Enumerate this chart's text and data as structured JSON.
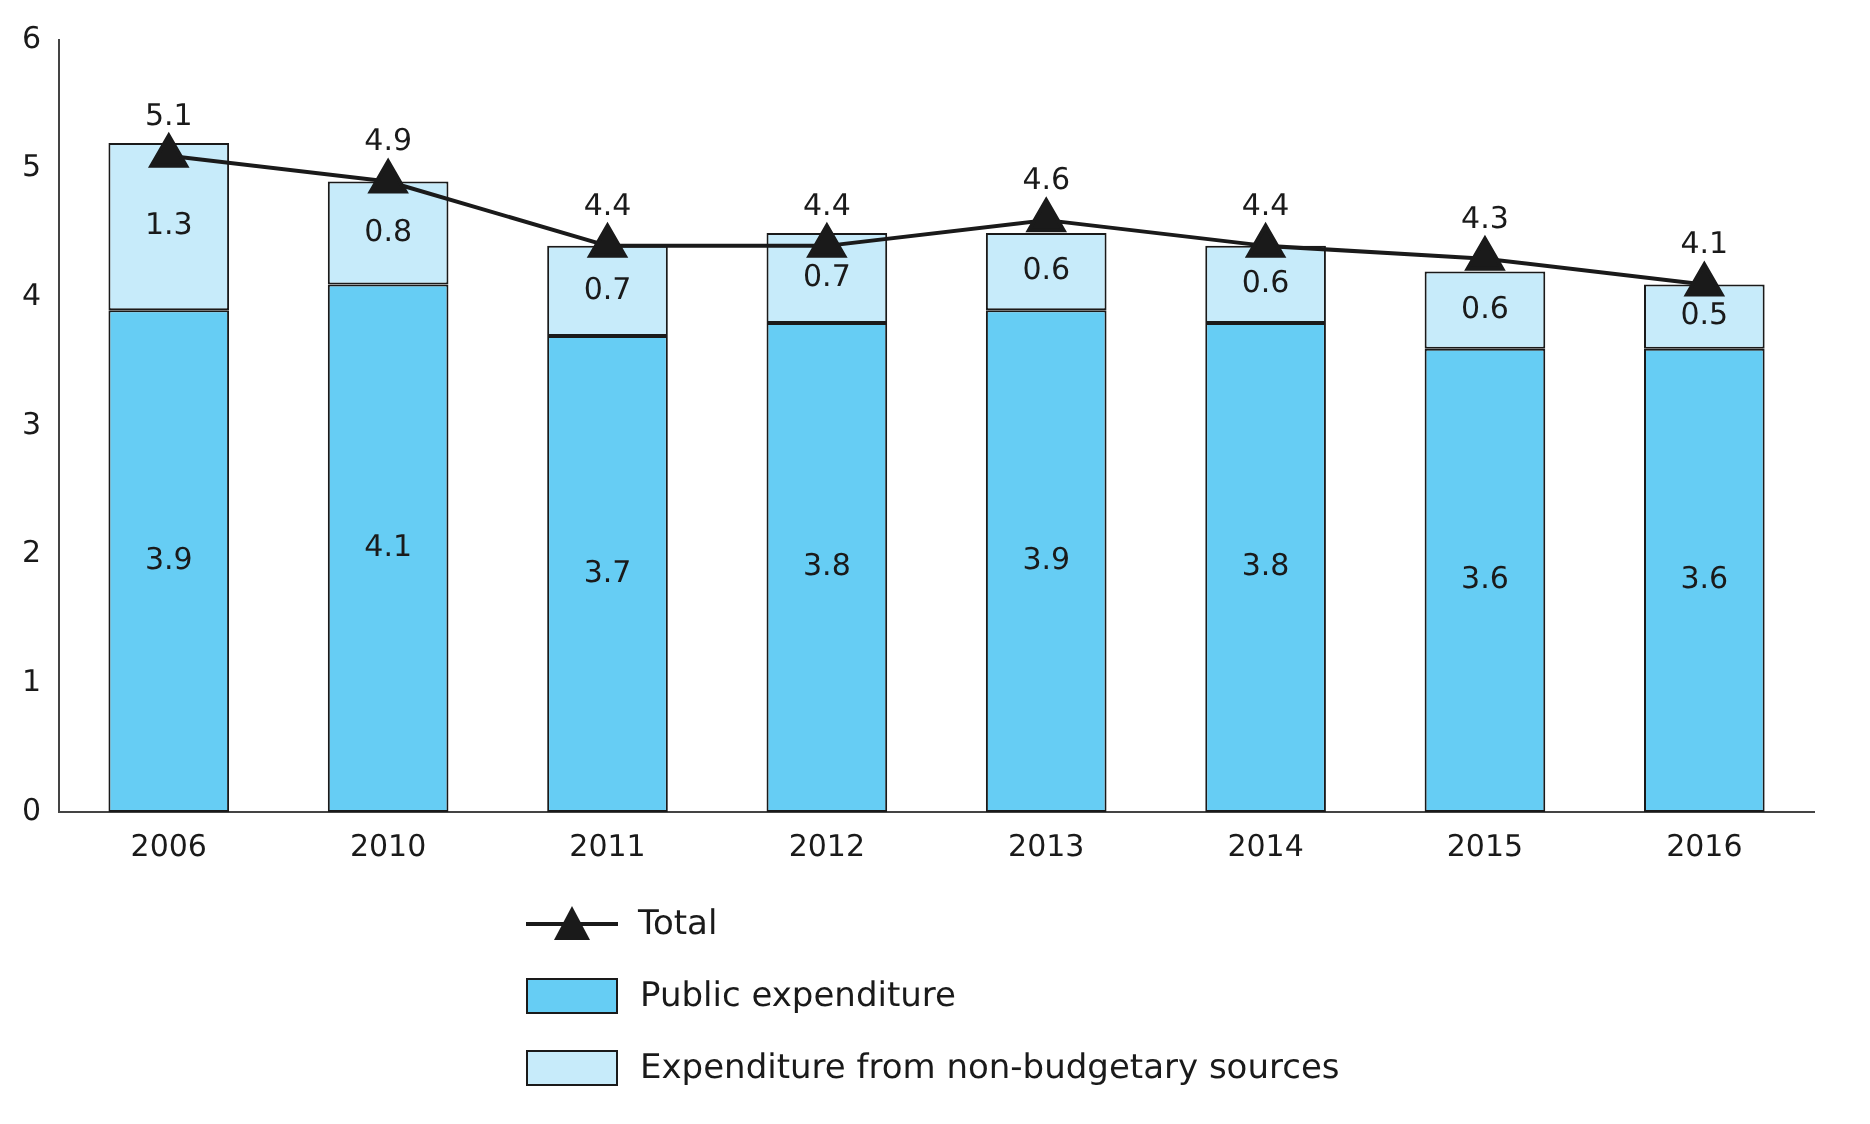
{
  "chart_data": {
    "type": "bar",
    "categories": [
      "2006",
      "2010",
      "2011",
      "2012",
      "2013",
      "2014",
      "2015",
      "2016"
    ],
    "stacked": true,
    "ylim": [
      0,
      6
    ],
    "yticks": [
      0,
      1,
      2,
      3,
      4,
      5,
      6
    ],
    "grid": false,
    "legend": "bottom",
    "data_labels": true,
    "series": [
      {
        "name": "Public expenditure",
        "color": "#66cdf4",
        "values": [
          3.9,
          4.1,
          3.7,
          3.8,
          3.9,
          3.8,
          3.6,
          3.6
        ]
      },
      {
        "name": "Expenditure from non-budgetary sources",
        "color": "#c7ebfa",
        "values": [
          1.3,
          0.8,
          0.7,
          0.7,
          0.6,
          0.6,
          0.6,
          0.5
        ]
      },
      {
        "name": "Total",
        "type": "line",
        "color": "#1a1a1a",
        "marker": "triangle",
        "line_style": "solid",
        "values": [
          5.1,
          4.9,
          4.4,
          4.4,
          4.6,
          4.4,
          4.3,
          4.1
        ]
      }
    ]
  }
}
